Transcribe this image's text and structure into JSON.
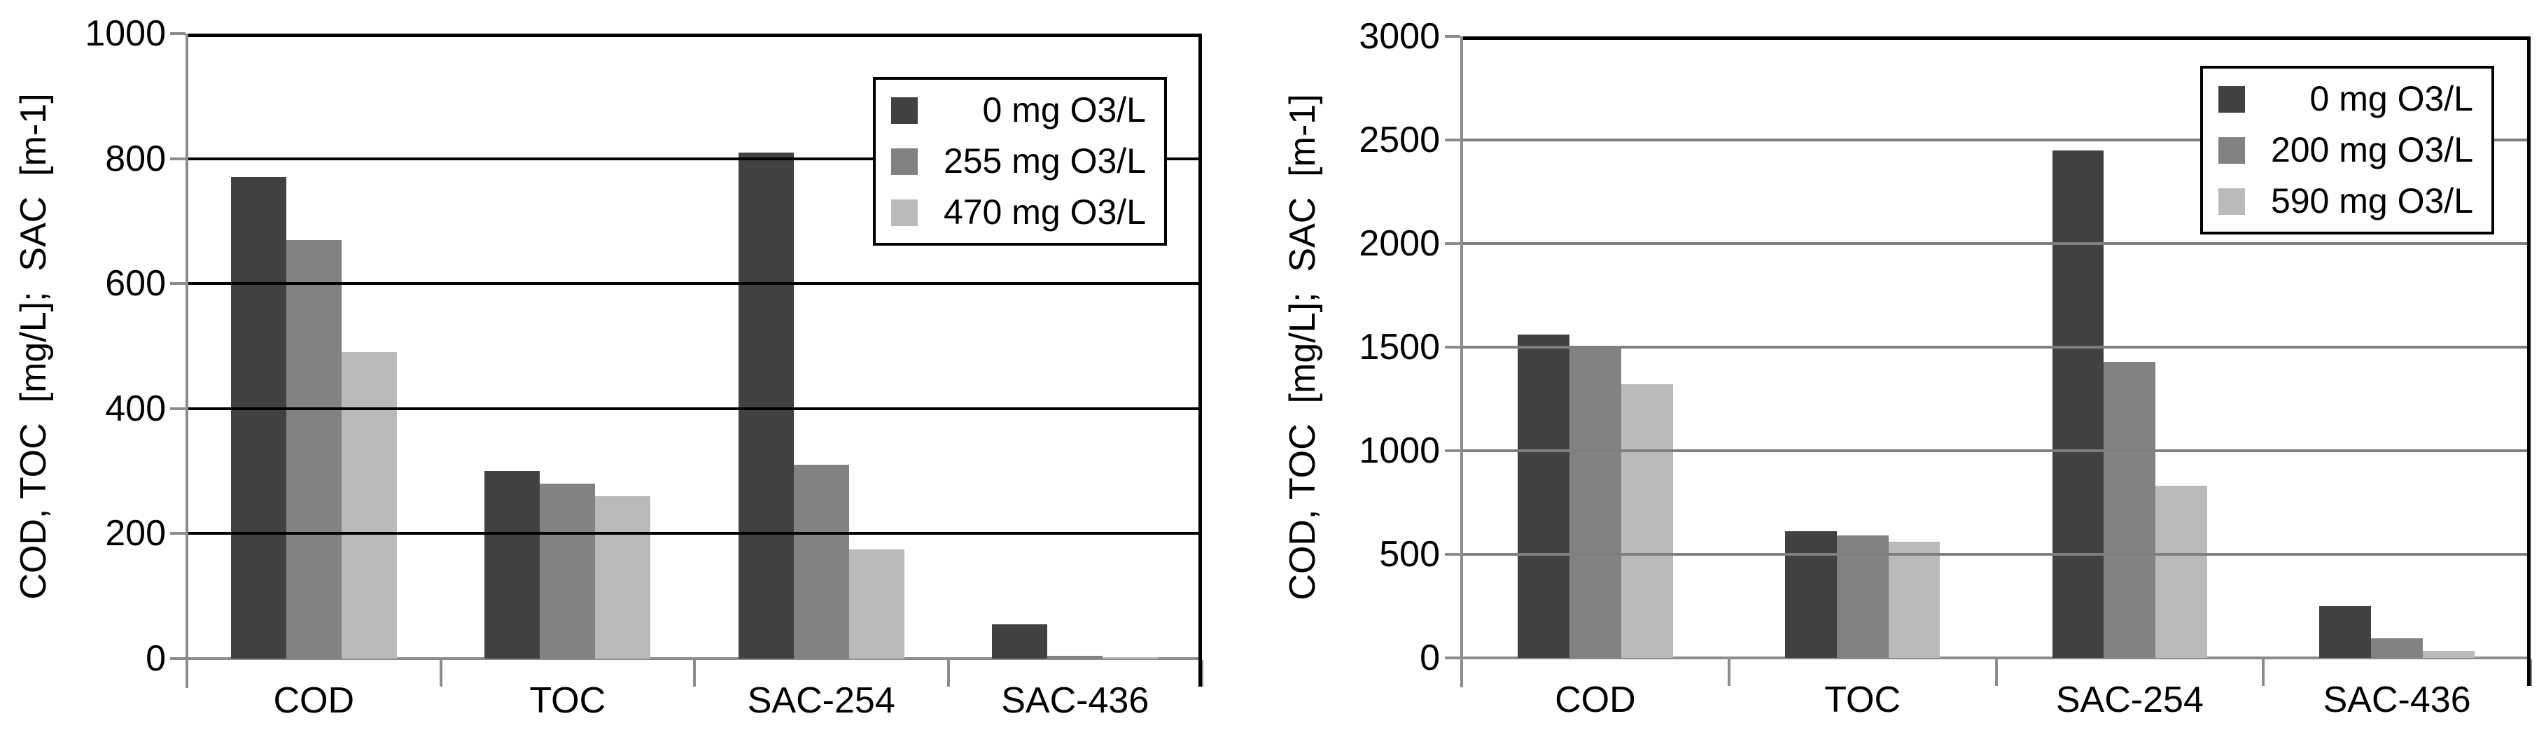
{
  "figure": {
    "background": "#ffffff"
  },
  "chart_data": [
    {
      "type": "bar",
      "title": "",
      "xlabel": "",
      "ylabel": "COD, TOC  [mg/L];  SAC  [m-1]",
      "ylim": [
        0,
        1000
      ],
      "ytick_step": 200,
      "yticks": [
        0,
        200,
        400,
        600,
        800,
        1000
      ],
      "categories": [
        "COD",
        "TOC",
        "SAC-254",
        "SAC-436"
      ],
      "grid": "horizontal",
      "gridline_color": "#000000",
      "legend_position": "top-right",
      "series": [
        {
          "name": "0 mg O3/L",
          "color": "#414141",
          "values": [
            770,
            300,
            810,
            55
          ]
        },
        {
          "name": "255 mg O3/L",
          "color": "#828282",
          "values": [
            670,
            280,
            310,
            5
          ]
        },
        {
          "name": "470 mg O3/L",
          "color": "#bababa",
          "values": [
            490,
            260,
            175,
            2
          ]
        }
      ]
    },
    {
      "type": "bar",
      "title": "",
      "xlabel": "",
      "ylabel": "COD, TOC  [mg/L];  SAC  [m-1]",
      "ylim": [
        0,
        3000
      ],
      "ytick_step": 500,
      "yticks": [
        0,
        500,
        1000,
        1500,
        2000,
        2500,
        3000
      ],
      "categories": [
        "COD",
        "TOC",
        "SAC-254",
        "SAC-436"
      ],
      "grid": "horizontal",
      "gridline_color": "#7f7f7f",
      "legend_position": "top-right",
      "series": [
        {
          "name": "0 mg O3/L",
          "color": "#414141",
          "values": [
            1560,
            610,
            2450,
            250
          ]
        },
        {
          "name": "200 mg O3/L",
          "color": "#828282",
          "values": [
            1500,
            590,
            1430,
            95
          ]
        },
        {
          "name": "590 mg O3/L",
          "color": "#bababa",
          "values": [
            1320,
            560,
            830,
            35
          ]
        }
      ]
    }
  ]
}
